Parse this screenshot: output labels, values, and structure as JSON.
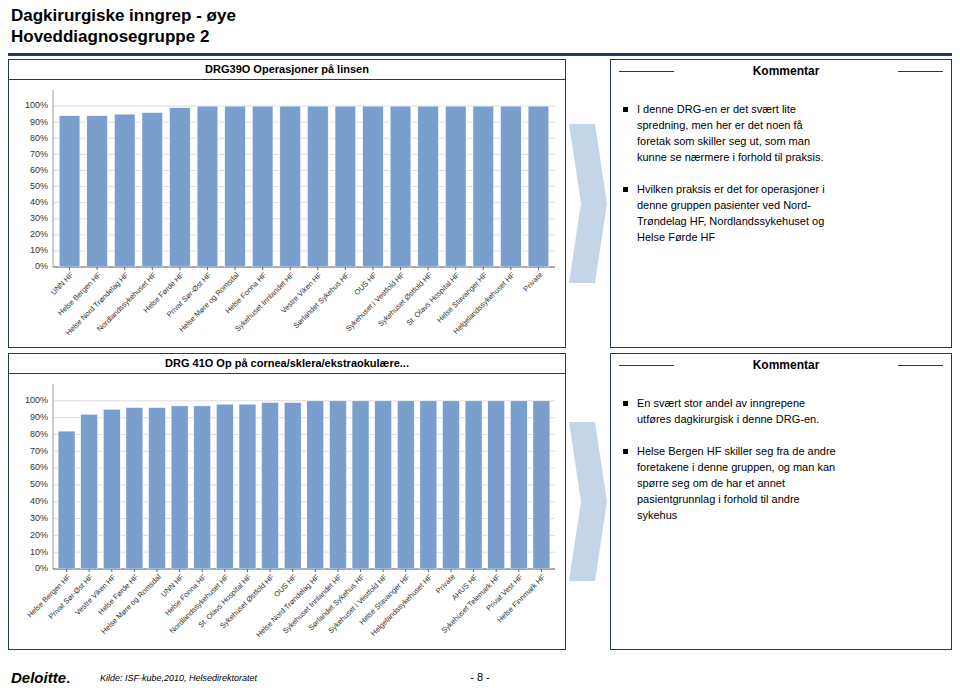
{
  "title": "Dagkirurgiske inngrep - øye",
  "subtitle": "Hoveddiagnosegruppe 2",
  "annotations": [
    "Kilde: ISF-kube,2010, Helsedirektoratet",
    "- 8 -",
    "Deloitte",
    "."
  ],
  "chart_data": [
    {
      "type": "bar",
      "title": "DRG39O Operasjoner på linsen",
      "categories": [
        "UNN HF",
        "Helse Bergen HF",
        "Helse Nord Trøndelag HF",
        "Nordlandssykehuset HF",
        "Helse Førde HF",
        "Privat Sør-Øst HF",
        "Helse Møre og Romsdal",
        "Helse Fonna HF",
        "Sykehuset Innlandet HF",
        "Vestre Viken HF",
        "Sørlandet Sykehus HF",
        "OUS HF",
        "Sykehuset i Vestfold HF",
        "Sykehuset Østfold HF",
        "St. Olavs Hospital HF",
        "Helse Stavanger HF",
        "Helgelandssykehuset HF",
        "Private"
      ],
      "values": [
        94,
        94,
        95,
        96,
        99,
        100,
        100,
        100,
        100,
        100,
        100,
        100,
        100,
        100,
        100,
        100,
        100,
        100
      ],
      "color": "#7B9FCC",
      "ylim": [
        0,
        110
      ],
      "yticks": [
        {
          "value": 0,
          "label": "0%"
        },
        {
          "value": 10,
          "label": "10%"
        },
        {
          "value": 20,
          "label": "20%"
        },
        {
          "value": 30,
          "label": "30%"
        },
        {
          "value": 40,
          "label": "40%"
        },
        {
          "value": 50,
          "label": "50%"
        },
        {
          "value": 60,
          "label": "60%"
        },
        {
          "value": 70,
          "label": "70%"
        },
        {
          "value": 80,
          "label": "80%"
        },
        {
          "value": 90,
          "label": "90%"
        },
        {
          "value": 100,
          "label": "100%"
        }
      ],
      "grid": true,
      "annotations": [
        "Kommentar",
        "I denne DRG-en er det svært lite\nspredning, men her er det noen få\nforetak som skiller seg ut, som man\nkunne se nærmere i forhold til praksis.",
        "Hvilken praksis er det for operasjoner i\ndenne gruppen pasienter ved Nord-\nTrøndelag HF, Nordlandssykehuset og\nHelse Førde HF"
      ]
    },
    {
      "type": "bar",
      "title": "DRG 41O Op på cornea/sklera/ekstraokulære...",
      "categories": [
        "Helse Bergen HF",
        "Privat Sør-Øst HF",
        "Vestre Viken HF",
        "Helse Førde HF",
        "Helse Møre og Romsdal",
        "UNN HF",
        "Helse Fonna HF",
        "Nordlandssykehuset HF",
        "St. Olavs Hospital HF",
        "Sykehuset Østfold HF",
        "OUS HF",
        "Helse Nord Trøndelag HF",
        "Sykehuset Innlandet HF",
        "Sørlandet Sykehus HF",
        "Sykehuset i Vestfold HF",
        "Helse Stavanger HF",
        "Helgelandssykehuset HF",
        "Private",
        "AHUS HF",
        "Sykehuset Telemark HF",
        "Privat Vest HF",
        "Helse Finnmark HF"
      ],
      "values": [
        82,
        92,
        95,
        96,
        96,
        97,
        97,
        98,
        98,
        99,
        99,
        100,
        100,
        100,
        100,
        100,
        100,
        100,
        100,
        100,
        100,
        100
      ],
      "color": "#7B9FCC",
      "ylim": [
        0,
        110
      ],
      "yticks": [
        {
          "value": 0,
          "label": "0%"
        },
        {
          "value": 10,
          "label": "10%"
        },
        {
          "value": 20,
          "label": "20%"
        },
        {
          "value": 30,
          "label": "30%"
        },
        {
          "value": 40,
          "label": "40%"
        },
        {
          "value": 50,
          "label": "50%"
        },
        {
          "value": 60,
          "label": "60%"
        },
        {
          "value": 70,
          "label": "70%"
        },
        {
          "value": 80,
          "label": "80%"
        },
        {
          "value": 90,
          "label": "90%"
        },
        {
          "value": 100,
          "label": "100%"
        }
      ],
      "grid": true,
      "annotations": [
        "Kommentar",
        "En svært stor andel av inngrepene\nutføres dagkirurgisk i denne DRG-en.",
        "Helse Bergen HF skiller seg fra de andre\nforetakene i denne gruppen, og man kan\nspørre seg om de har et annet\npasientgrunnlag i forhold til andre\nsykehus"
      ]
    }
  ]
}
